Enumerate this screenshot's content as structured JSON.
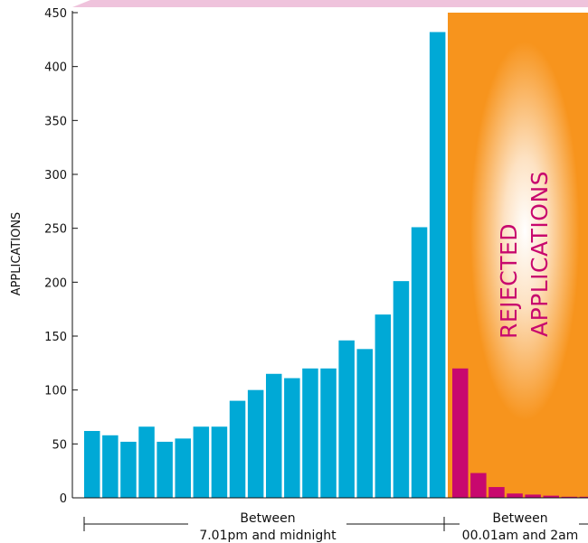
{
  "chart_data": {
    "type": "bar",
    "ylabel": "APPLICATIONS",
    "ylim": [
      0,
      450
    ],
    "yticks": [
      0,
      50,
      100,
      150,
      200,
      250,
      300,
      350,
      400,
      450
    ],
    "grid": false,
    "series": [
      {
        "group": "Between 7.01pm and midnight",
        "color": "#00a9d6",
        "values": [
          62,
          58,
          52,
          66,
          52,
          55,
          66,
          66,
          90,
          100,
          115,
          111,
          120,
          120,
          146,
          138,
          170,
          201,
          251,
          432
        ]
      },
      {
        "group": "Between 00.01am and 2am",
        "color": "#c8086e",
        "values": [
          120,
          23,
          10,
          4,
          3,
          2,
          1,
          1
        ]
      }
    ],
    "highlight": {
      "label_line1": "REJECTED",
      "label_line2": "APPLICATIONS",
      "color": "#f7941d"
    },
    "groups": [
      {
        "line1": "Between",
        "line2": "7.01pm and midnight"
      },
      {
        "line1": "Between",
        "line2": "00.01am and 2am"
      }
    ]
  }
}
